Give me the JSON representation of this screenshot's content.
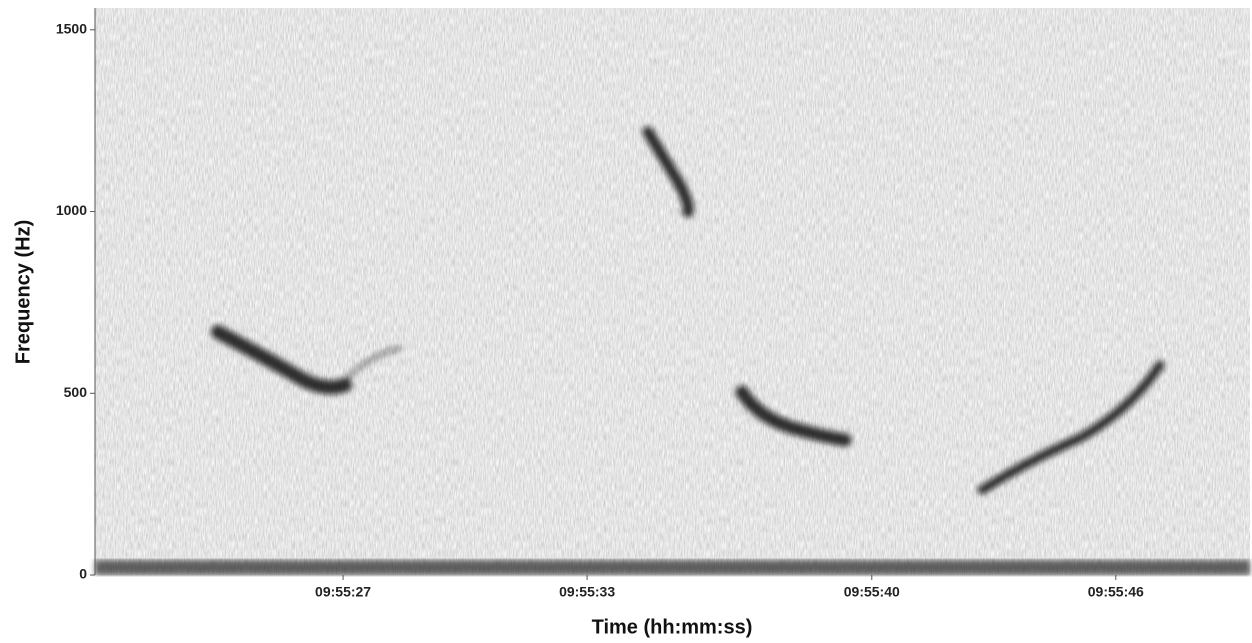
{
  "chart_data": {
    "type": "spectrogram",
    "xlabel": "Time (hh:mm:ss)",
    "ylabel": "Frequency (Hz)",
    "xlim": [
      20.9,
      49.3
    ],
    "xticks": [
      {
        "value": 27,
        "label": "09:55:27"
      },
      {
        "value": 33,
        "label": "09:55:33"
      },
      {
        "value": 40,
        "label": "09:55:40"
      },
      {
        "value": 46,
        "label": "09:55:46"
      }
    ],
    "ylim": [
      0,
      1560
    ],
    "yticks": [
      0,
      500,
      1000,
      1500
    ]
  }
}
